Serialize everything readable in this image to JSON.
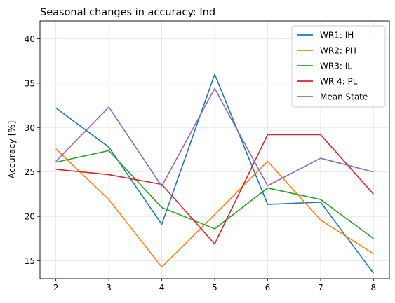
{
  "chart_data": {
    "type": "line",
    "title": "Seasonal changes in accuracy: Ind",
    "xlabel": "",
    "ylabel": "Accuracy [%]",
    "x": [
      2,
      3,
      4,
      5,
      6,
      7,
      8
    ],
    "xlim": [
      1.7,
      8.3
    ],
    "ylim": [
      13,
      42
    ],
    "xticks": [
      2,
      3,
      4,
      5,
      6,
      7,
      8
    ],
    "yticks": [
      15,
      20,
      25,
      30,
      35,
      40
    ],
    "grid": true,
    "legend_position": "top-right",
    "series": [
      {
        "name": "WR1: IH",
        "color": "#1f77b4",
        "values": [
          32.2,
          27.8,
          19.1,
          36.0,
          21.35,
          21.6,
          13.6
        ]
      },
      {
        "name": "WR2: PH",
        "color": "#ff7f0e",
        "values": [
          27.6,
          21.9,
          14.3,
          20.2,
          26.2,
          19.6,
          15.8
        ]
      },
      {
        "name": "WR3: IL",
        "color": "#2ca02c",
        "values": [
          26.1,
          27.4,
          21.0,
          18.6,
          23.2,
          21.9,
          17.5
        ]
      },
      {
        "name": "WR 4: PL",
        "color": "#d62728",
        "values": [
          25.3,
          24.7,
          23.6,
          16.9,
          29.2,
          29.2,
          22.5
        ]
      },
      {
        "name": "Mean State",
        "color": "#9467bd",
        "values": [
          26.2,
          32.3,
          23.4,
          34.4,
          23.45,
          26.55,
          25.0
        ]
      }
    ]
  }
}
